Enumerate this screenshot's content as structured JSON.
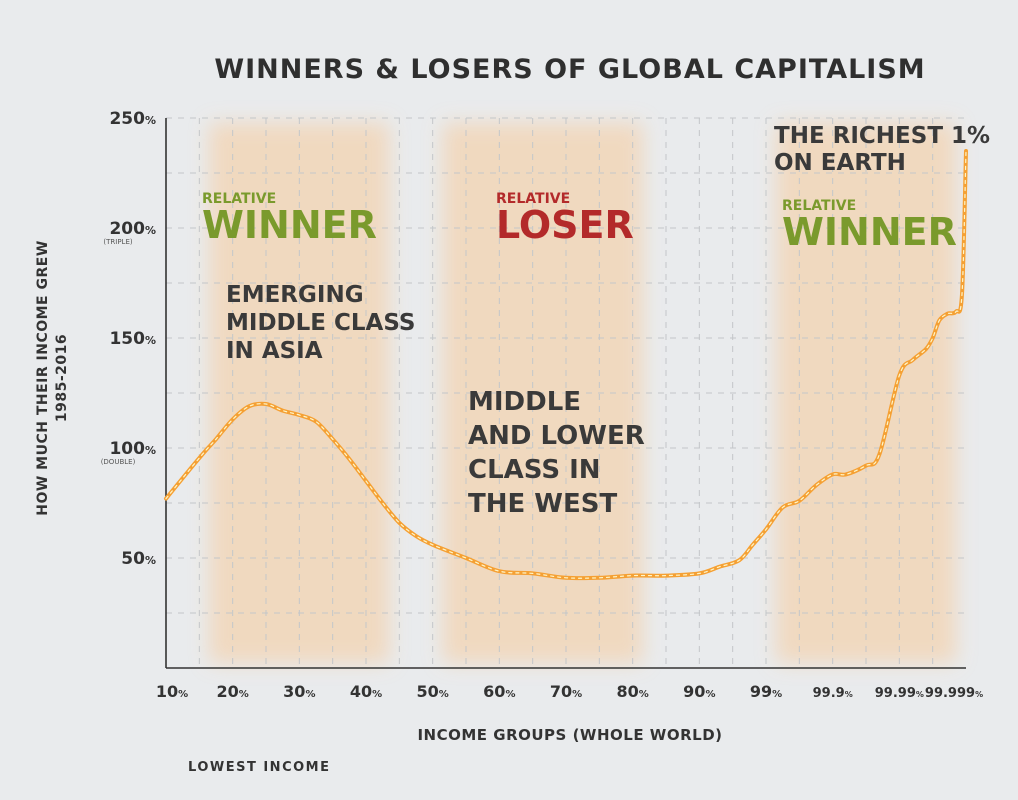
{
  "chart_data": {
    "type": "line",
    "title": "WINNERS & LOSERS OF GLOBAL CAPITALISM",
    "xlabel": "INCOME GROUPS (WHOLE WORLD)",
    "ylabel": [
      "HOW MUCH THEIR INCOME GREW",
      "1985-2016"
    ],
    "x_ticks": [
      {
        "value": "10",
        "suffix": "%"
      },
      {
        "value": "20",
        "suffix": "%"
      },
      {
        "value": "30",
        "suffix": "%"
      },
      {
        "value": "40",
        "suffix": "%"
      },
      {
        "value": "50",
        "suffix": "%"
      },
      {
        "value": "60",
        "suffix": "%"
      },
      {
        "value": "70",
        "suffix": "%"
      },
      {
        "value": "80",
        "suffix": "%"
      },
      {
        "value": "90",
        "suffix": "%"
      },
      {
        "value": "99",
        "suffix": "%"
      },
      {
        "value": "99.9",
        "suffix": "%"
      },
      {
        "value": "99.99",
        "suffix": "%"
      },
      {
        "value": "99.999",
        "suffix": "%"
      }
    ],
    "y_ticks": [
      {
        "value": "250",
        "suffix": "%",
        "sub": "",
        "v": 250
      },
      {
        "value": "200",
        "suffix": "%",
        "sub": "(TRIPLE)",
        "v": 200
      },
      {
        "value": "150",
        "suffix": "%",
        "sub": "",
        "v": 150
      },
      {
        "value": "100",
        "suffix": "%",
        "sub": "(DOUBLE)",
        "v": 100
      },
      {
        "value": "50",
        "suffix": "%",
        "sub": "",
        "v": 50
      }
    ],
    "ylim": [
      0,
      250
    ],
    "x_index_range": [
      0,
      12
    ],
    "grid": true,
    "line_color": "#f5a033",
    "series": [
      {
        "x_index": [
          0,
          0.35,
          0.6,
          0.75,
          1.0,
          1.25,
          1.5,
          1.75,
          2.0,
          2.25,
          2.5,
          2.75,
          3.0,
          3.25,
          3.5,
          3.75,
          4.0,
          4.5,
          5.0,
          5.5,
          6.0,
          6.5,
          7.0,
          7.5,
          8.0,
          8.3,
          8.6,
          8.8,
          9.0,
          9.25,
          9.5,
          9.75,
          10.0,
          10.2,
          10.5,
          10.7,
          11.0,
          11.2,
          11.4,
          11.5,
          11.6,
          11.72,
          11.85,
          11.94,
          12.0
        ],
        "values": [
          77,
          90,
          99,
          104,
          113,
          119,
          120,
          117,
          115,
          112,
          104,
          95,
          85,
          75,
          66,
          60,
          56,
          50,
          44,
          43,
          41,
          41,
          42,
          42,
          43,
          46,
          49,
          56,
          63,
          73,
          76,
          83,
          88,
          88,
          92,
          97,
          133,
          140,
          145,
          150,
          158,
          161,
          162,
          170,
          235
        ]
      }
    ],
    "bands": [
      {
        "from_index": 0.5,
        "to_index": 3.5,
        "small": "RELATIVE",
        "big": "WINNER",
        "color": "#7a9a2c"
      },
      {
        "from_index": 4.0,
        "to_index": 7.3,
        "small": "RELATIVE",
        "big": "LOSER",
        "color": "#b32a2a"
      },
      {
        "from_index": 9.0,
        "to_index": 12.0,
        "small": "RELATIVE",
        "big": "WINNER",
        "color": "#7a9a2c"
      }
    ],
    "annotations": {
      "richest": [
        "THE RICHEST 1%",
        "ON EARTH"
      ],
      "emerging": [
        "EMERGING",
        "MIDDLE CLASS",
        "IN ASIA"
      ],
      "middle": [
        "MIDDLE",
        "AND LOWER",
        "CLASS IN",
        "THE WEST"
      ],
      "lowest": "LOWEST INCOME"
    }
  }
}
